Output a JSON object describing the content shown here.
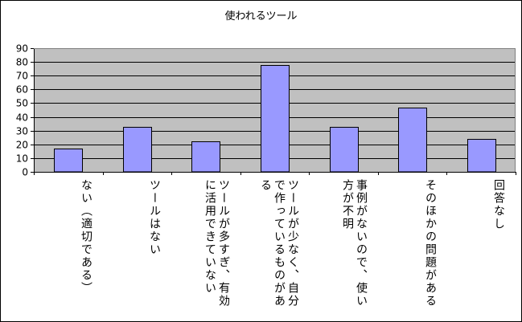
{
  "chart_data": {
    "type": "bar",
    "title": "使われるツール",
    "categories": [
      "ない（適切である）",
      "ツールはない",
      "ツールが多すぎ、有効に活用できていない",
      "ツールが少なく、自分で作っているものがある",
      "事例がないので、使い方が不明",
      "そのほかの問題がある",
      "回答なし"
    ],
    "values": [
      17,
      33,
      22,
      78,
      33,
      47,
      24
    ],
    "ylim": [
      0,
      90
    ],
    "yticks": [
      0,
      10,
      20,
      30,
      40,
      50,
      60,
      70,
      80,
      90
    ],
    "grid": true,
    "legend": "none",
    "colors": {
      "bar_fill": "#9999ff",
      "bar_stroke": "#000000",
      "plot_background": "#c0c0c0",
      "gridline": "#000000"
    }
  }
}
